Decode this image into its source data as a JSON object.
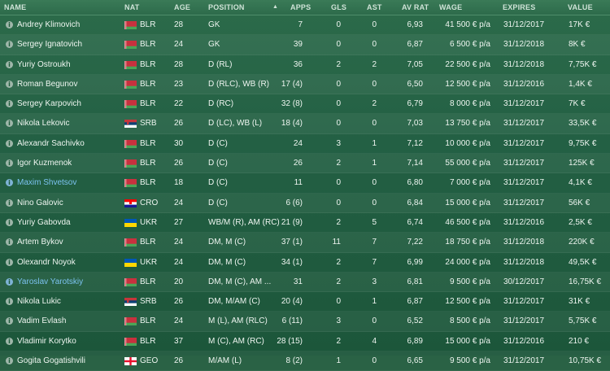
{
  "header": {
    "name": "NAME",
    "nat": "NAT",
    "age": "AGE",
    "position": "POSITION",
    "apps": "APPS",
    "gls": "GLS",
    "ast": "AST",
    "av_rat": "AV RAT",
    "wage": "WAGE",
    "expires": "EXPIRES",
    "value": "VALUE"
  },
  "rows": [
    {
      "name": "Andrey Klimovich",
      "nat": "BLR",
      "flag": "blr",
      "age": "28",
      "position": "GK",
      "apps": "7",
      "gls": "0",
      "ast": "0",
      "av_rat": "6,93",
      "wage": "41 500 € p/a",
      "expires": "31/12/2017",
      "value": "17K €",
      "hl": false
    },
    {
      "name": "Sergey Ignatovich",
      "nat": "BLR",
      "flag": "blr",
      "age": "24",
      "position": "GK",
      "apps": "39",
      "gls": "0",
      "ast": "0",
      "av_rat": "6,87",
      "wage": "6 500 € p/a",
      "expires": "31/12/2018",
      "value": "8K €",
      "hl": false
    },
    {
      "name": "Yuriy Ostroukh",
      "nat": "BLR",
      "flag": "blr",
      "age": "28",
      "position": "D (RL)",
      "apps": "36",
      "gls": "2",
      "ast": "2",
      "av_rat": "7,05",
      "wage": "22 500 € p/a",
      "expires": "31/12/2018",
      "value": "7,75K €",
      "hl": false
    },
    {
      "name": "Roman Begunov",
      "nat": "BLR",
      "flag": "blr",
      "age": "23",
      "position": "D (RLC), WB (R)",
      "apps": "17 (4)",
      "gls": "0",
      "ast": "0",
      "av_rat": "6,50",
      "wage": "12 500 € p/a",
      "expires": "31/12/2016",
      "value": "1,4K €",
      "hl": false
    },
    {
      "name": "Sergey Karpovich",
      "nat": "BLR",
      "flag": "blr",
      "age": "22",
      "position": "D (RC)",
      "apps": "32 (8)",
      "gls": "0",
      "ast": "2",
      "av_rat": "6,79",
      "wage": "8 000 € p/a",
      "expires": "31/12/2017",
      "value": "7K €",
      "hl": false
    },
    {
      "name": "Nikola Lekovic",
      "nat": "SRB",
      "flag": "srb",
      "age": "26",
      "position": "D (LC), WB (L)",
      "apps": "18 (4)",
      "gls": "0",
      "ast": "0",
      "av_rat": "7,03",
      "wage": "13 750 € p/a",
      "expires": "31/12/2017",
      "value": "33,5K €",
      "hl": false
    },
    {
      "name": "Alexandr Sachivko",
      "nat": "BLR",
      "flag": "blr",
      "age": "30",
      "position": "D (C)",
      "apps": "24",
      "gls": "3",
      "ast": "1",
      "av_rat": "7,12",
      "wage": "10 000 € p/a",
      "expires": "31/12/2017",
      "value": "9,75K €",
      "hl": false
    },
    {
      "name": "Igor Kuzmenok",
      "nat": "BLR",
      "flag": "blr",
      "age": "26",
      "position": "D (C)",
      "apps": "26",
      "gls": "2",
      "ast": "1",
      "av_rat": "7,14",
      "wage": "55 000 € p/a",
      "expires": "31/12/2017",
      "value": "125K €",
      "hl": false
    },
    {
      "name": "Maxim Shvetsov",
      "nat": "BLR",
      "flag": "blr",
      "age": "18",
      "position": "D (C)",
      "apps": "11",
      "gls": "0",
      "ast": "0",
      "av_rat": "6,80",
      "wage": "7 000 € p/a",
      "expires": "31/12/2017",
      "value": "4,1K €",
      "hl": true
    },
    {
      "name": "Nino Galovic",
      "nat": "CRO",
      "flag": "cro",
      "age": "24",
      "position": "D (C)",
      "apps": "6 (6)",
      "gls": "0",
      "ast": "0",
      "av_rat": "6,84",
      "wage": "15 000 € p/a",
      "expires": "31/12/2017",
      "value": "56K €",
      "hl": false
    },
    {
      "name": "Yuriy Gabovda",
      "nat": "UKR",
      "flag": "ukr",
      "age": "27",
      "position": "WB/M (R), AM (RC)",
      "apps": "21 (9)",
      "gls": "2",
      "ast": "5",
      "av_rat": "6,74",
      "wage": "46 500 € p/a",
      "expires": "31/12/2016",
      "value": "2,5K €",
      "hl": false
    },
    {
      "name": "Artem Bykov",
      "nat": "BLR",
      "flag": "blr",
      "age": "24",
      "position": "DM, M (C)",
      "apps": "37 (1)",
      "gls": "11",
      "ast": "7",
      "av_rat": "7,22",
      "wage": "18 750 € p/a",
      "expires": "31/12/2018",
      "value": "220K €",
      "hl": false
    },
    {
      "name": "Olexandr Noyok",
      "nat": "UKR",
      "flag": "ukr",
      "age": "24",
      "position": "DM, M (C)",
      "apps": "34 (1)",
      "gls": "2",
      "ast": "7",
      "av_rat": "6,99",
      "wage": "24 000 € p/a",
      "expires": "31/12/2018",
      "value": "49,5K €",
      "hl": false
    },
    {
      "name": "Yaroslav Yarotskiy",
      "nat": "BLR",
      "flag": "blr",
      "age": "20",
      "position": "DM, M (C), AM ...",
      "apps": "31",
      "gls": "2",
      "ast": "3",
      "av_rat": "6,81",
      "wage": "9 500 € p/a",
      "expires": "30/12/2017",
      "value": "16,75K €",
      "hl": true
    },
    {
      "name": "Nikola Lukic",
      "nat": "SRB",
      "flag": "srb",
      "age": "26",
      "position": "DM, M/AM (C)",
      "apps": "20 (4)",
      "gls": "0",
      "ast": "1",
      "av_rat": "6,87",
      "wage": "12 500 € p/a",
      "expires": "31/12/2017",
      "value": "31K €",
      "hl": false
    },
    {
      "name": "Vadim Evlash",
      "nat": "BLR",
      "flag": "blr",
      "age": "24",
      "position": "M (L), AM (RLC)",
      "apps": "6 (11)",
      "gls": "3",
      "ast": "0",
      "av_rat": "6,52",
      "wage": "8 500 € p/a",
      "expires": "31/12/2017",
      "value": "5,75K €",
      "hl": false
    },
    {
      "name": "Vladimir Korytko",
      "nat": "BLR",
      "flag": "blr",
      "age": "37",
      "position": "M (C), AM (RC)",
      "apps": "28 (15)",
      "gls": "2",
      "ast": "4",
      "av_rat": "6,89",
      "wage": "15 000 € p/a",
      "expires": "31/12/2016",
      "value": "210 €",
      "hl": false
    },
    {
      "name": "Gogita Gogatishvili",
      "nat": "GEO",
      "flag": "geo",
      "age": "26",
      "position": "M/AM (L)",
      "apps": "8 (2)",
      "gls": "1",
      "ast": "0",
      "av_rat": "6,65",
      "wage": "9 500 € p/a",
      "expires": "31/12/2017",
      "value": "10,75K €",
      "hl": false
    }
  ]
}
